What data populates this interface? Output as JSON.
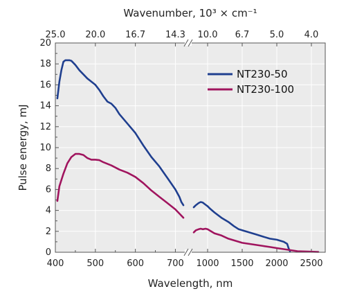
{
  "chart_data": {
    "type": "line",
    "title": "",
    "xlabel": "Wavelength, nm",
    "ylabel": "Pulse energy, mJ",
    "top_axis_label": "Wavenumber, 10³ × cm⁻¹",
    "grid": true,
    "legend_position": "top-right",
    "broken_x_axis": true,
    "x_segments": [
      {
        "range": [
          400,
          720
        ],
        "ticks": [
          400,
          500,
          600,
          700
        ],
        "tick_labels": [
          "400",
          "500",
          "600",
          "700"
        ]
      },
      {
        "range": [
          730,
          2620
        ],
        "ticks": [
          1000,
          1500,
          2000,
          2500
        ],
        "tick_labels": [
          "1000",
          "1500",
          "2000",
          "2500"
        ]
      }
    ],
    "top_ticks": [
      {
        "label": "25.0",
        "wavelength": 400
      },
      {
        "label": "20.0",
        "wavelength": 500
      },
      {
        "label": "16.7",
        "wavelength": 600
      },
      {
        "label": "14.3",
        "wavelength": 700
      },
      {
        "label": "10.0",
        "wavelength": 1000
      },
      {
        "label": "6.7",
        "wavelength": 1500
      },
      {
        "label": "5.0",
        "wavelength": 2000
      },
      {
        "label": "4.0",
        "wavelength": 2500
      }
    ],
    "ylim": [
      0,
      20
    ],
    "yticks": [
      0,
      2,
      4,
      6,
      8,
      10,
      12,
      14,
      16,
      18,
      20
    ],
    "colors": {
      "NT230-50": "#1f3f8f",
      "NT230-100": "#a0145e"
    },
    "series": [
      {
        "name": "NT230-50",
        "segments": [
          [
            [
              405,
              14.7
            ],
            [
              410,
              16.3
            ],
            [
              415,
              17.4
            ],
            [
              420,
              18.2
            ],
            [
              425,
              18.35
            ],
            [
              435,
              18.35
            ],
            [
              440,
              18.3
            ],
            [
              450,
              17.9
            ],
            [
              460,
              17.4
            ],
            [
              470,
              17.0
            ],
            [
              480,
              16.6
            ],
            [
              500,
              16.0
            ],
            [
              510,
              15.5
            ],
            [
              520,
              14.9
            ],
            [
              530,
              14.4
            ],
            [
              540,
              14.2
            ],
            [
              550,
              13.8
            ],
            [
              560,
              13.2
            ],
            [
              580,
              12.3
            ],
            [
              600,
              11.4
            ],
            [
              620,
              10.2
            ],
            [
              640,
              9.1
            ],
            [
              660,
              8.2
            ],
            [
              680,
              7.1
            ],
            [
              700,
              6.0
            ],
            [
              710,
              5.3
            ],
            [
              715,
              4.8
            ],
            [
              720,
              4.5
            ]
          ],
          [
            [
              800,
              4.3
            ],
            [
              830,
              4.5
            ],
            [
              870,
              4.7
            ],
            [
              900,
              4.8
            ],
            [
              930,
              4.75
            ],
            [
              980,
              4.5
            ],
            [
              1000,
              4.4
            ],
            [
              1030,
              4.2
            ],
            [
              1100,
              3.8
            ],
            [
              1200,
              3.3
            ],
            [
              1300,
              2.9
            ],
            [
              1380,
              2.5
            ],
            [
              1450,
              2.2
            ],
            [
              1500,
              2.1
            ],
            [
              1600,
              1.9
            ],
            [
              1700,
              1.7
            ],
            [
              1800,
              1.5
            ],
            [
              1900,
              1.3
            ],
            [
              2000,
              1.2
            ],
            [
              2100,
              1.0
            ],
            [
              2150,
              0.8
            ],
            [
              2170,
              0.4
            ],
            [
              2190,
              0.1
            ]
          ]
        ]
      },
      {
        "name": "NT230-100",
        "segments": [
          [
            [
              405,
              4.9
            ],
            [
              410,
              6.3
            ],
            [
              420,
              7.5
            ],
            [
              430,
              8.5
            ],
            [
              440,
              9.1
            ],
            [
              450,
              9.4
            ],
            [
              460,
              9.4
            ],
            [
              470,
              9.3
            ],
            [
              480,
              9.0
            ],
            [
              490,
              8.85
            ],
            [
              500,
              8.85
            ],
            [
              510,
              8.8
            ],
            [
              520,
              8.6
            ],
            [
              540,
              8.3
            ],
            [
              560,
              7.9
            ],
            [
              580,
              7.6
            ],
            [
              600,
              7.2
            ],
            [
              620,
              6.6
            ],
            [
              640,
              5.9
            ],
            [
              660,
              5.3
            ],
            [
              680,
              4.7
            ],
            [
              700,
              4.1
            ],
            [
              710,
              3.7
            ],
            [
              720,
              3.3
            ]
          ],
          [
            [
              800,
              1.9
            ],
            [
              830,
              2.1
            ],
            [
              870,
              2.2
            ],
            [
              900,
              2.25
            ],
            [
              930,
              2.2
            ],
            [
              970,
              2.25
            ],
            [
              1000,
              2.2
            ],
            [
              1050,
              2.0
            ],
            [
              1100,
              1.8
            ],
            [
              1200,
              1.6
            ],
            [
              1300,
              1.3
            ],
            [
              1400,
              1.1
            ],
            [
              1500,
              0.9
            ],
            [
              1600,
              0.8
            ],
            [
              1700,
              0.7
            ],
            [
              1800,
              0.6
            ],
            [
              1900,
              0.5
            ],
            [
              2000,
              0.4
            ],
            [
              2100,
              0.3
            ],
            [
              2200,
              0.2
            ],
            [
              2300,
              0.1
            ],
            [
              2500,
              0.05
            ],
            [
              2600,
              0.03
            ]
          ]
        ]
      }
    ]
  }
}
